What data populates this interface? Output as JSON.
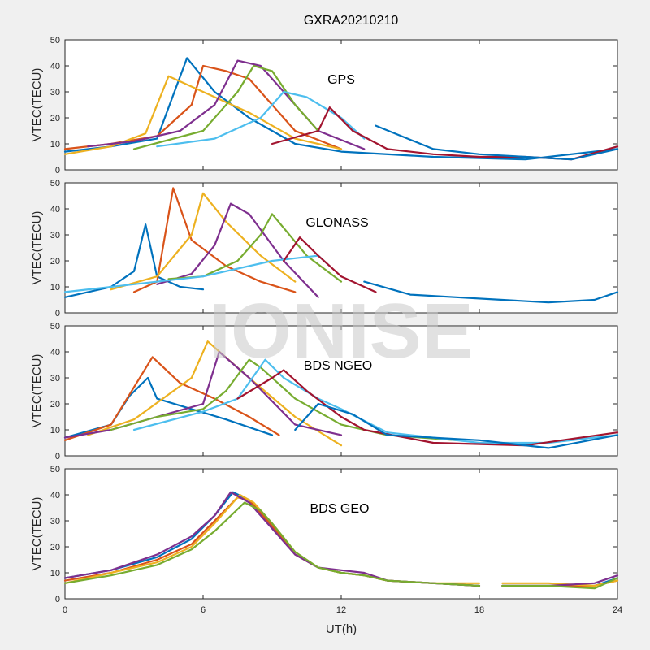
{
  "figure": {
    "title": "GXRA20210210",
    "watermark": "IONISE"
  },
  "colors": [
    "#0072BD",
    "#D95319",
    "#EDB120",
    "#7E2F8E",
    "#77AC30",
    "#4DBEEE",
    "#A2142F"
  ],
  "chart_data": [
    {
      "type": "line",
      "title": "GXRA20210210",
      "annotation": "GPS",
      "xlabel": "",
      "ylabel": "VTEC(TECU)",
      "xlim": [
        0,
        24
      ],
      "ylim": [
        0,
        50
      ],
      "x_ticks": [
        0,
        6,
        12,
        18,
        24
      ],
      "y_ticks": [
        0,
        10,
        20,
        30,
        40,
        50
      ],
      "series": [
        {
          "x": [
            0,
            2,
            4,
            5.3,
            6.5,
            8,
            10,
            12,
            16,
            20,
            24
          ],
          "y": [
            7,
            9,
            12,
            43,
            30,
            20,
            10,
            7,
            5,
            4,
            8
          ]
        },
        {
          "x": [
            0,
            2,
            4,
            5.5,
            6,
            7,
            8,
            9,
            10,
            12
          ],
          "y": [
            8,
            10,
            13,
            25,
            40,
            38,
            35,
            25,
            15,
            8
          ]
        },
        {
          "x": [
            0,
            2,
            3.5,
            4.5,
            6,
            8,
            10,
            12
          ],
          "y": [
            6,
            9,
            14,
            36,
            30,
            22,
            12,
            8
          ]
        },
        {
          "x": [
            1,
            3,
            5,
            6.5,
            7.5,
            8.5,
            9.5,
            11,
            13
          ],
          "y": [
            9,
            11,
            15,
            25,
            42,
            40,
            30,
            15,
            8
          ]
        },
        {
          "x": [
            3,
            6,
            7.5,
            8.2,
            9,
            10,
            11
          ],
          "y": [
            8,
            15,
            30,
            40,
            38,
            25,
            15
          ]
        },
        {
          "x": [
            4,
            6.5,
            8.5,
            9.5,
            10.5,
            12,
            13
          ],
          "y": [
            9,
            12,
            20,
            30,
            28,
            20,
            12
          ]
        },
        {
          "x": [
            9,
            11,
            11.5,
            12.5,
            14,
            16,
            18,
            20,
            22,
            24
          ],
          "y": [
            10,
            15,
            24,
            15,
            8,
            6,
            5,
            5,
            4,
            9
          ]
        },
        {
          "x": [
            13.5,
            16,
            18,
            20,
            22,
            24
          ],
          "y": [
            17,
            8,
            6,
            5,
            4,
            8
          ]
        }
      ]
    },
    {
      "type": "line",
      "title": "",
      "annotation": "GLONASS",
      "xlabel": "",
      "ylabel": "VTEC(TECU)",
      "xlim": [
        0,
        24
      ],
      "ylim": [
        0,
        50
      ],
      "x_ticks": [
        0,
        6,
        12,
        18,
        24
      ],
      "y_ticks": [
        0,
        10,
        20,
        30,
        40,
        50
      ],
      "series": [
        {
          "x": [
            0,
            2,
            3,
            3.5,
            4,
            5,
            6
          ],
          "y": [
            6,
            10,
            16,
            34,
            14,
            10,
            9
          ]
        },
        {
          "x": [
            3,
            4,
            4.7,
            5.5,
            7,
            8.5,
            10
          ],
          "y": [
            8,
            12,
            48,
            28,
            18,
            12,
            8
          ]
        },
        {
          "x": [
            2,
            4,
            5.5,
            6,
            7,
            8.5,
            10
          ],
          "y": [
            9,
            14,
            30,
            46,
            35,
            22,
            12
          ]
        },
        {
          "x": [
            4,
            5.5,
            6.5,
            7.2,
            8,
            9.5,
            11
          ],
          "y": [
            11,
            15,
            26,
            42,
            38,
            20,
            6
          ]
        },
        {
          "x": [
            4.5,
            6,
            7.5,
            8.5,
            9,
            10.5,
            12
          ],
          "y": [
            13,
            14,
            20,
            30,
            38,
            22,
            12
          ]
        },
        {
          "x": [
            0,
            3,
            6,
            9,
            10,
            11,
            11.5
          ],
          "y": [
            8,
            11,
            14,
            20,
            21,
            22,
            18
          ]
        },
        {
          "x": [
            9.5,
            10.2,
            11,
            12,
            13.5
          ],
          "y": [
            20,
            29,
            22,
            14,
            8
          ]
        },
        {
          "x": [
            13,
            15,
            17,
            19,
            21,
            23,
            24
          ],
          "y": [
            12,
            7,
            6,
            5,
            4,
            5,
            8
          ]
        }
      ]
    },
    {
      "type": "line",
      "title": "",
      "annotation": "BDS NGEO",
      "xlabel": "",
      "ylabel": "VTEC(TECU)",
      "xlim": [
        0,
        24
      ],
      "ylim": [
        0,
        50
      ],
      "x_ticks": [
        0,
        6,
        12,
        18,
        24
      ],
      "y_ticks": [
        0,
        10,
        20,
        30,
        40,
        50
      ],
      "series": [
        {
          "x": [
            0,
            2,
            2.8,
            3.6,
            4,
            5.5,
            7,
            9
          ],
          "y": [
            7,
            12,
            23,
            30,
            22,
            18,
            14,
            8
          ]
        },
        {
          "x": [
            0,
            2,
            3.8,
            5,
            6.5,
            8,
            9.3
          ],
          "y": [
            6,
            12,
            38,
            28,
            22,
            15,
            8
          ]
        },
        {
          "x": [
            1,
            3,
            5.5,
            6.2,
            8,
            10,
            12
          ],
          "y": [
            8,
            14,
            30,
            44,
            30,
            15,
            4
          ]
        },
        {
          "x": [
            0,
            2,
            4,
            6,
            6.7,
            8,
            10,
            12
          ],
          "y": [
            7,
            10,
            15,
            20,
            40,
            30,
            12,
            8
          ]
        },
        {
          "x": [
            2,
            4,
            6,
            7,
            8,
            8.5,
            10,
            12,
            14,
            17
          ],
          "y": [
            10,
            15,
            18,
            25,
            37,
            34,
            22,
            12,
            8,
            6
          ]
        },
        {
          "x": [
            3,
            6,
            7.5,
            8.7,
            9.5,
            11,
            12,
            14,
            18,
            21,
            24
          ],
          "y": [
            10,
            17,
            22,
            37,
            30,
            22,
            18,
            9,
            5,
            5,
            8
          ]
        },
        {
          "x": [
            7.5,
            9,
            9.5,
            10.5,
            12,
            13,
            16,
            20,
            24
          ],
          "y": [
            22,
            30,
            33,
            25,
            15,
            10,
            5,
            4,
            9
          ]
        },
        {
          "x": [
            10,
            11,
            12.5,
            14,
            18,
            21,
            24
          ],
          "y": [
            10,
            20,
            16,
            8,
            6,
            3,
            8
          ]
        }
      ]
    },
    {
      "type": "line",
      "title": "",
      "annotation": "BDS GEO",
      "xlabel": "UT(h)",
      "ylabel": "VTEC(TECU)",
      "xlim": [
        0,
        24
      ],
      "ylim": [
        0,
        50
      ],
      "x_ticks": [
        0,
        6,
        12,
        18,
        24
      ],
      "y_ticks": [
        0,
        10,
        20,
        30,
        40,
        50
      ],
      "gap": [
        18,
        19
      ],
      "series": [
        {
          "x": [
            0,
            2,
            4,
            5.5,
            6.5,
            7.3,
            8,
            9,
            10,
            11,
            12,
            13,
            14,
            16,
            18,
            19,
            21,
            23,
            24
          ],
          "y": [
            8,
            11,
            16,
            23,
            32,
            41,
            38,
            28,
            17,
            12,
            10,
            9,
            7,
            6,
            5,
            5,
            5,
            5,
            8
          ]
        },
        {
          "x": [
            0,
            2,
            4,
            5.5,
            6.5,
            7.5,
            8,
            9,
            10,
            11,
            12,
            13,
            14,
            16,
            18,
            19,
            21,
            23,
            24
          ],
          "y": [
            7,
            10,
            15,
            21,
            30,
            39,
            38,
            28,
            17,
            12,
            10,
            9,
            7,
            6,
            5,
            5,
            5,
            5,
            7
          ]
        },
        {
          "x": [
            0,
            2,
            4,
            5.5,
            6.5,
            7.6,
            8.2,
            9,
            10,
            11,
            12,
            13,
            14,
            16,
            18,
            19,
            21,
            23,
            24
          ],
          "y": [
            6,
            10,
            14,
            20,
            29,
            40,
            37,
            29,
            18,
            12,
            10,
            9,
            7,
            6,
            6,
            6,
            6,
            5,
            7
          ]
        },
        {
          "x": [
            0,
            2,
            4,
            5.5,
            6.5,
            7.2,
            8,
            9,
            10,
            11,
            12,
            13,
            14,
            16,
            18,
            19,
            21,
            23,
            24
          ],
          "y": [
            8,
            11,
            17,
            24,
            32,
            41,
            37,
            27,
            17,
            12,
            11,
            10,
            7,
            6,
            5,
            5,
            5,
            6,
            9
          ]
        },
        {
          "x": [
            0,
            2,
            4,
            5.5,
            6.5,
            7.8,
            8.5,
            9,
            10,
            11,
            12,
            13,
            14,
            16,
            18,
            19,
            21,
            23,
            24
          ],
          "y": [
            6,
            9,
            13,
            19,
            26,
            37,
            34,
            29,
            18,
            12,
            10,
            9,
            7,
            6,
            5,
            5,
            5,
            4,
            8
          ]
        }
      ]
    }
  ]
}
